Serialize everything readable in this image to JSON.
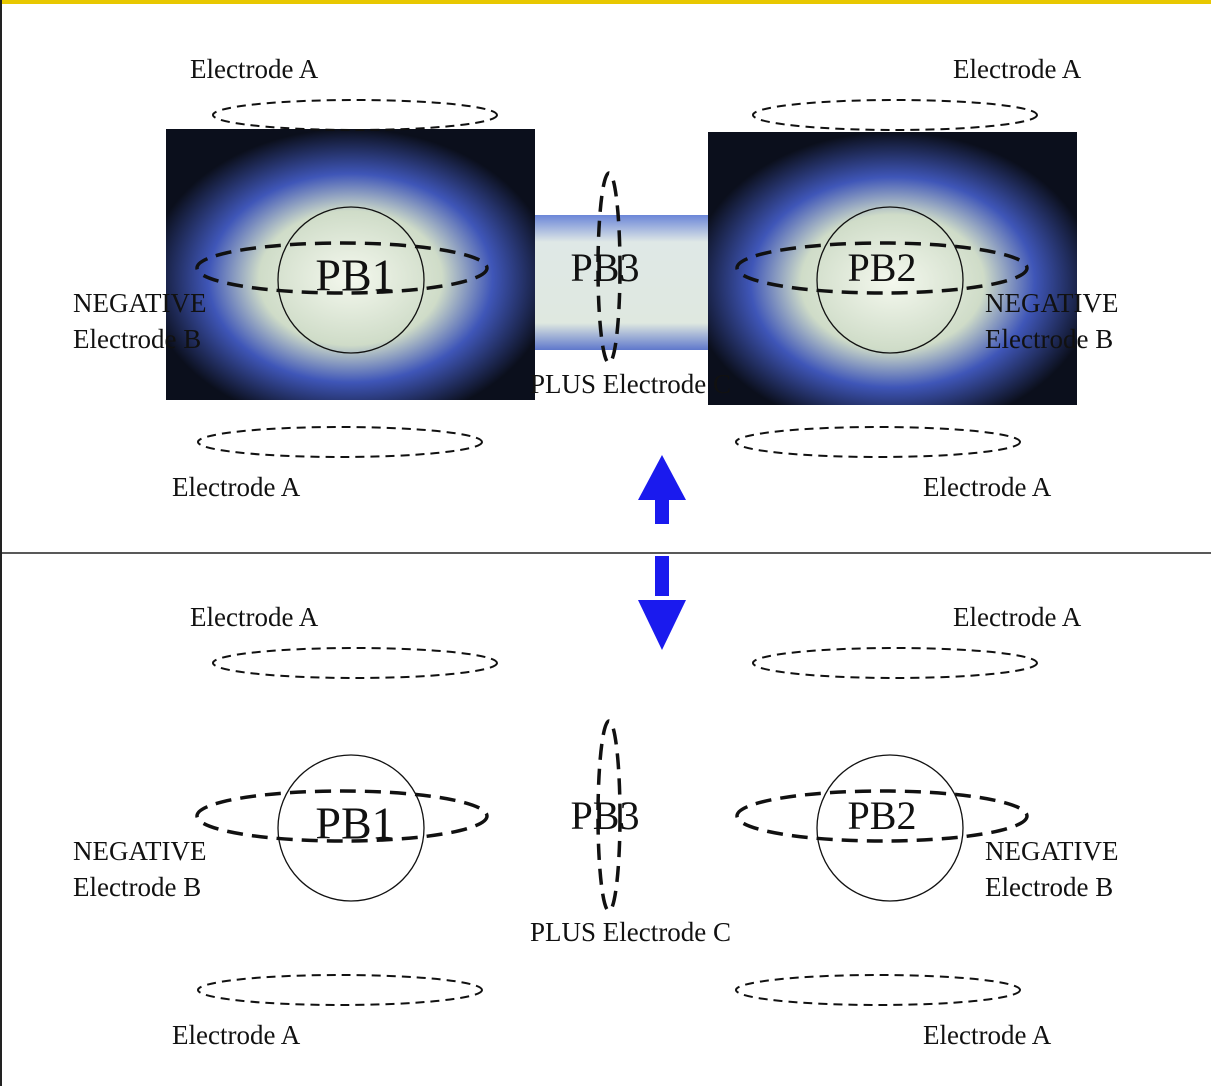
{
  "panels": [
    {
      "electrode_a": [
        "Electrode A",
        "Electrode A",
        "Electrode A",
        "Electrode A"
      ],
      "plasma_balls": [
        "PB1",
        "PB2",
        "PB3"
      ],
      "electrode_b": [
        [
          "NEGATIVE",
          "Electrode B"
        ],
        [
          "NEGATIVE",
          "Electrode B"
        ]
      ],
      "electrode_c": "PLUS Electrode C"
    },
    {
      "electrode_a": [
        "Electrode A",
        "Electrode A",
        "Electrode A",
        "Electrode A"
      ],
      "plasma_balls": [
        "PB1",
        "PB2",
        "PB3"
      ],
      "electrode_b": [
        [
          "NEGATIVE",
          "Electrode B"
        ],
        [
          "NEGATIVE",
          "Electrode B"
        ]
      ],
      "electrode_c": "PLUS Electrode C"
    }
  ]
}
